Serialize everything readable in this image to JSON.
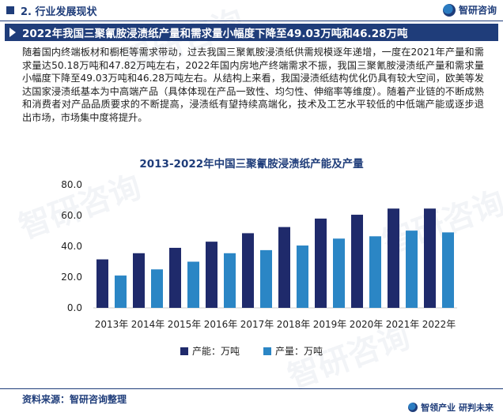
{
  "header": {
    "section_label": "2. 行业发展现状",
    "brand_name": "智研咨询"
  },
  "headline": "2022年我国三聚氰胺浸渍纸产量和需求量小幅度下降至49.03万吨和46.28万吨",
  "paragraph": "随着国内终端板材和橱柜等需求带动，过去我国三聚氰胺浸渍纸供需规模逐年递增，一度在2021年产量和需求量达50.18万吨和47.82万吨左右，2022年国内房地产终端需求不振，我国三聚氰胺浸渍纸产量和需求量小幅度下降至49.03万吨和46.28万吨左右。从结构上来看，我国浸渍纸结构优化仍具有较大空间，欧美等发达国家浸渍纸基本为中高端产品（具体体现在产品一致性、均匀性、伸缩率等维度）。随着产业链的不断成熟和消费者对产品品质要求的不断提高，浸渍纸有望持续高端化，技术及工艺水平较低的中低端产能或逐步退出市场，市场集中度将提升。",
  "chart_data": {
    "type": "bar",
    "title": "2013-2022年中国三聚氰胺浸渍纸产能及产量",
    "categories": [
      "2013年",
      "2014年",
      "2015年",
      "2016年",
      "2017年",
      "2018年",
      "2019年",
      "2020年",
      "2021年",
      "2022年"
    ],
    "series": [
      {
        "name": "产能：万吨",
        "color": "#1f2a6b",
        "values": [
          31.5,
          35.5,
          39.0,
          43.0,
          48.5,
          52.5,
          58.0,
          60.5,
          64.5,
          64.5
        ]
      },
      {
        "name": "产量：万吨",
        "color": "#2b86c5",
        "values": [
          21.0,
          25.0,
          30.0,
          35.5,
          37.5,
          40.5,
          45.0,
          46.5,
          50.18,
          49.03
        ]
      }
    ],
    "yticks": [
      "80.0",
      "60.0",
      "40.0",
      "20.0",
      "0.0"
    ],
    "ylim": [
      0,
      80
    ],
    "grid": true
  },
  "legend": {
    "capacity": "产能：万吨",
    "output": "产量：万吨",
    "capacity_color": "#1f2a6b",
    "output_color": "#2b86c5"
  },
  "footer": {
    "source": "资料来源：智研咨询整理",
    "tagline": "智领产业 研判未来"
  },
  "watermark_text": "智研咨询"
}
